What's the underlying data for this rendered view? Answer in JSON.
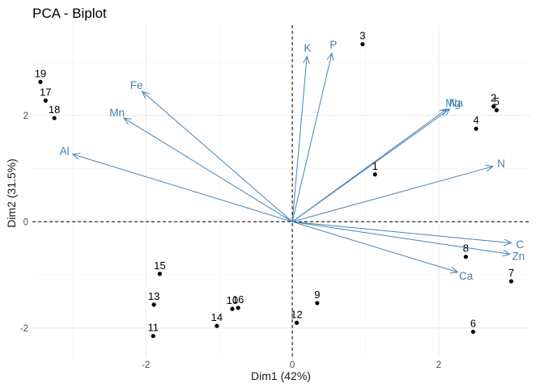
{
  "chart_data": {
    "type": "scatter",
    "subtype": "pca-biplot",
    "title": "PCA - Biplot",
    "xlabel": "Dim1 (42%)",
    "ylabel": "Dim2 (31.5%)",
    "xlim": [
      -3.55,
      3.25
    ],
    "ylim": [
      -2.55,
      3.7
    ],
    "xticks": [
      -2,
      0,
      2
    ],
    "yticks": [
      -2,
      0,
      2
    ],
    "grid": true,
    "reference_lines": {
      "x": 0,
      "y": 0,
      "style": "dashed"
    },
    "colors": {
      "points": "#000000",
      "variables": "#4682b4",
      "grid": "#ebebeb"
    },
    "points": [
      {
        "label": "1",
        "x": 1.13,
        "y": 0.89
      },
      {
        "label": "2",
        "x": 2.75,
        "y": 2.17
      },
      {
        "label": "3",
        "x": 0.96,
        "y": 3.34
      },
      {
        "label": "4",
        "x": 2.51,
        "y": 1.75
      },
      {
        "label": "5",
        "x": 2.79,
        "y": 2.1
      },
      {
        "label": "6",
        "x": 2.47,
        "y": -2.07
      },
      {
        "label": "7",
        "x": 2.99,
        "y": -1.12
      },
      {
        "label": "8",
        "x": 2.37,
        "y": -0.66
      },
      {
        "label": "9",
        "x": 0.34,
        "y": -1.53
      },
      {
        "label": "10",
        "x": -0.82,
        "y": -1.64
      },
      {
        "label": "11",
        "x": -1.9,
        "y": -2.15
      },
      {
        "label": "12",
        "x": 0.06,
        "y": -1.9
      },
      {
        "label": "13",
        "x": -1.89,
        "y": -1.56
      },
      {
        "label": "14",
        "x": -1.03,
        "y": -1.96
      },
      {
        "label": "15",
        "x": -1.81,
        "y": -0.98
      },
      {
        "label": "16",
        "x": -0.74,
        "y": -1.62
      },
      {
        "label": "17",
        "x": -3.37,
        "y": 2.28
      },
      {
        "label": "18",
        "x": -3.25,
        "y": 1.95
      },
      {
        "label": "19",
        "x": -3.44,
        "y": 2.63
      }
    ],
    "variables": [
      {
        "label": "K",
        "x": 0.2,
        "y": 3.11
      },
      {
        "label": "P",
        "x": 0.54,
        "y": 3.17
      },
      {
        "label": "Fe",
        "x": -2.05,
        "y": 2.45
      },
      {
        "label": "Mn",
        "x": -2.3,
        "y": 1.95
      },
      {
        "label": "Al",
        "x": -3.0,
        "y": 1.27
      },
      {
        "label": "Mg",
        "x": 2.11,
        "y": 2.12
      },
      {
        "label": "Na",
        "x": 2.15,
        "y": 2.12
      },
      {
        "label": "N",
        "x": 2.74,
        "y": 1.04
      },
      {
        "label": "C",
        "x": 2.99,
        "y": -0.4
      },
      {
        "label": "Zn",
        "x": 2.97,
        "y": -0.61
      },
      {
        "label": "Ca",
        "x": 2.26,
        "y": -0.95
      }
    ]
  }
}
